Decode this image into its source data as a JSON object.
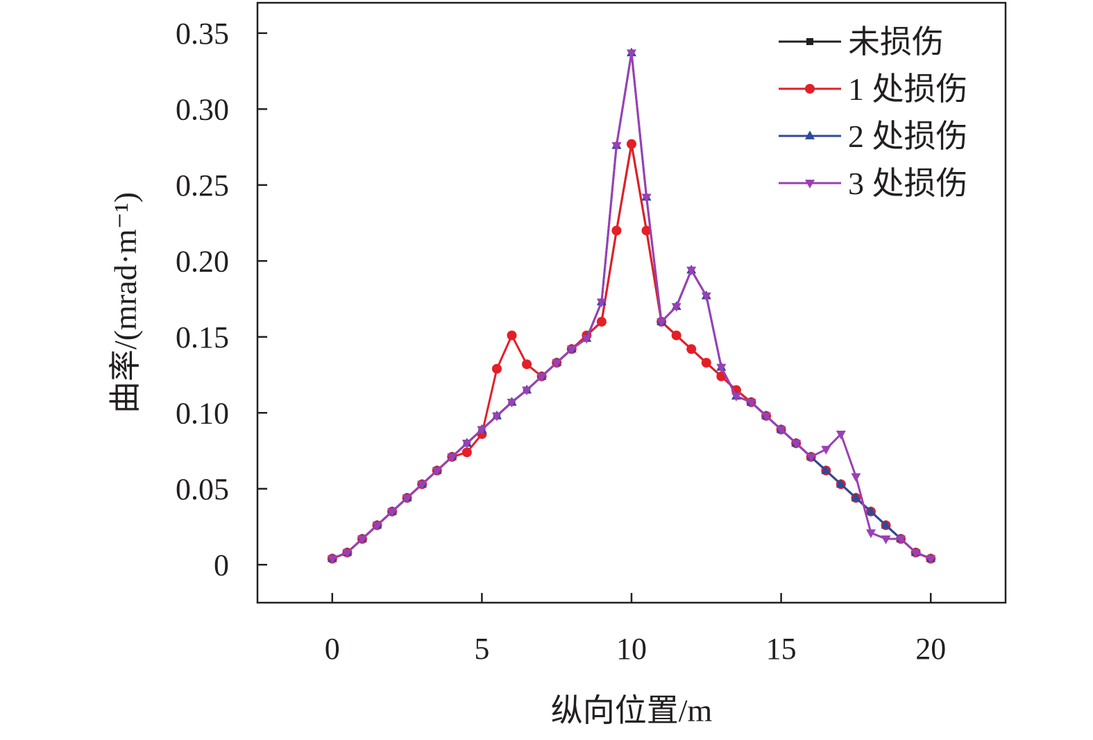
{
  "chart_data": {
    "type": "line",
    "title": "",
    "xlabel": "纵向位置/m",
    "ylabel": "曲率/(mrad·m⁻¹)",
    "xlim": [
      -2.5,
      22.5
    ],
    "ylim": [
      -0.025,
      0.37
    ],
    "xticks": [
      {
        "value": 0,
        "label": "0"
      },
      {
        "value": 5,
        "label": "5"
      },
      {
        "value": 10,
        "label": "10"
      },
      {
        "value": 15,
        "label": "15"
      },
      {
        "value": 20,
        "label": "20"
      }
    ],
    "yticks": [
      {
        "value": 0,
        "label": "0"
      },
      {
        "value": 0.05,
        "label": "0.05"
      },
      {
        "value": 0.1,
        "label": "0.10"
      },
      {
        "value": 0.15,
        "label": "0.15"
      },
      {
        "value": 0.2,
        "label": "0.20"
      },
      {
        "value": 0.25,
        "label": "0.25"
      },
      {
        "value": 0.3,
        "label": "0.30"
      },
      {
        "value": 0.35,
        "label": "0.35"
      }
    ],
    "grid": false,
    "legend_position": "top-right",
    "x": [
      0,
      0.5,
      1,
      1.5,
      2,
      2.5,
      3,
      3.5,
      4,
      4.5,
      5,
      5.5,
      6,
      6.5,
      7,
      7.5,
      8,
      8.5,
      9,
      9.5,
      10,
      10.5,
      11,
      11.5,
      12,
      12.5,
      13,
      13.5,
      14,
      14.5,
      15,
      15.5,
      16,
      16.5,
      17,
      17.5,
      18,
      18.5,
      19,
      19.5,
      20
    ],
    "series": [
      {
        "name": "未损伤",
        "color": "#231f20",
        "marker": "square",
        "values": [
          0.004,
          0.008,
          0.017,
          0.026,
          0.035,
          0.044,
          0.053,
          0.062,
          0.071,
          0.08,
          0.089,
          0.098,
          0.107,
          0.115,
          0.124,
          0.133,
          0.142,
          0.151,
          0.16,
          0.22,
          0.277,
          0.22,
          0.16,
          0.151,
          0.142,
          0.133,
          0.124,
          0.115,
          0.107,
          0.098,
          0.089,
          0.08,
          0.071,
          0.062,
          0.053,
          0.044,
          0.035,
          0.026,
          0.017,
          0.008,
          0.004
        ]
      },
      {
        "name": "1 处损伤",
        "color": "#e41f26",
        "marker": "circle",
        "values": [
          0.004,
          0.008,
          0.017,
          0.026,
          0.035,
          0.044,
          0.053,
          0.062,
          0.071,
          0.074,
          0.086,
          0.129,
          0.151,
          0.132,
          0.124,
          0.133,
          0.142,
          0.151,
          0.16,
          0.22,
          0.277,
          0.22,
          0.16,
          0.151,
          0.142,
          0.133,
          0.124,
          0.115,
          0.107,
          0.098,
          0.089,
          0.08,
          0.071,
          0.062,
          0.053,
          0.044,
          0.035,
          0.026,
          0.017,
          0.008,
          0.004
        ]
      },
      {
        "name": "2 处损伤",
        "color": "#2d4a9b",
        "marker": "triangle-up",
        "values": [
          0.004,
          0.008,
          0.017,
          0.026,
          0.035,
          0.044,
          0.053,
          0.062,
          0.071,
          0.08,
          0.089,
          0.098,
          0.107,
          0.115,
          0.124,
          0.133,
          0.142,
          0.149,
          0.173,
          0.276,
          0.337,
          0.242,
          0.16,
          0.17,
          0.194,
          0.177,
          0.13,
          0.111,
          0.107,
          0.098,
          0.089,
          0.08,
          0.071,
          0.062,
          0.053,
          0.044,
          0.035,
          0.026,
          0.017,
          0.008,
          0.004
        ]
      },
      {
        "name": "3 处损伤",
        "color": "#9a40b5",
        "marker": "triangle-down",
        "values": [
          0.004,
          0.008,
          0.017,
          0.026,
          0.035,
          0.044,
          0.053,
          0.062,
          0.071,
          0.08,
          0.089,
          0.098,
          0.107,
          0.115,
          0.124,
          0.133,
          0.142,
          0.149,
          0.173,
          0.276,
          0.337,
          0.242,
          0.16,
          0.17,
          0.194,
          0.177,
          0.13,
          0.111,
          0.107,
          0.098,
          0.089,
          0.08,
          0.071,
          0.076,
          0.086,
          0.058,
          0.021,
          0.017,
          0.017,
          0.008,
          0.004
        ]
      }
    ]
  }
}
